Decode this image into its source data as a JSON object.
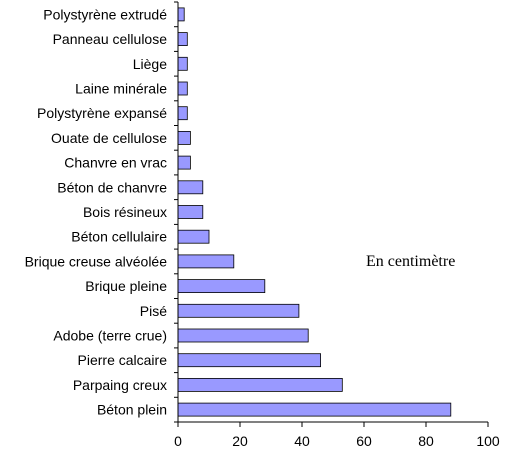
{
  "chart_data": {
    "type": "bar",
    "orientation": "horizontal",
    "categories": [
      "Polystyrène extrudé",
      "Panneau cellulose",
      "Liège",
      "Laine minérale",
      "Polystyrène expansé",
      "Ouate de cellulose",
      "Chanvre en vrac",
      "Béton de chanvre",
      "Bois résineux",
      "Béton cellulaire",
      "Brique creuse alvéolée",
      "Brique pleine",
      "Pisé",
      "Adobe (terre crue)",
      "Pierre calcaire",
      "Parpaing creux",
      "Béton plein"
    ],
    "values": [
      2,
      3,
      3,
      3,
      3,
      4,
      4,
      8,
      8,
      10,
      18,
      28,
      39,
      42,
      46,
      53,
      88
    ],
    "xlim": [
      0,
      100
    ],
    "xticks": [
      0,
      20,
      40,
      60,
      80,
      100
    ],
    "annotation": "En centimètre",
    "title": "",
    "xlabel": "",
    "ylabel": "",
    "grid": false,
    "bar_color": "#9999ff"
  }
}
